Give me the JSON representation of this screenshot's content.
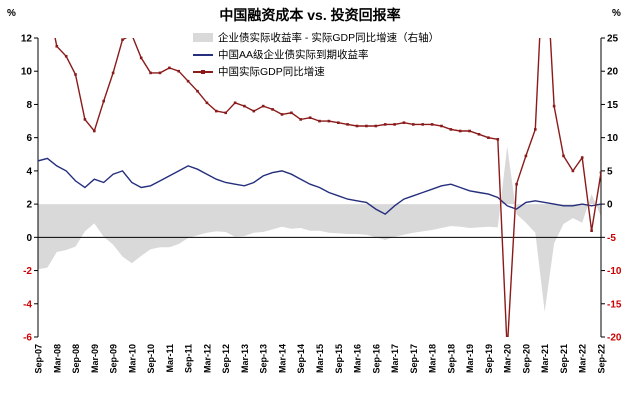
{
  "chart_data": {
    "type": "line",
    "title": "中国融资成本 vs. 投资回报率",
    "x_tick_labels": [
      "Sep-07",
      "Mar-08",
      "Sep-08",
      "Mar-09",
      "Sep-09",
      "Mar-10",
      "Sep-10",
      "Mar-11",
      "Sep-11",
      "Mar-12",
      "Sep-12",
      "Mar-13",
      "Sep-13",
      "Mar-14",
      "Sep-14",
      "Mar-15",
      "Sep-15",
      "Mar-16",
      "Sep-16",
      "Mar-17",
      "Sep-17",
      "Mar-18",
      "Sep-18",
      "Mar-19",
      "Sep-19",
      "Mar-20",
      "Sep-20",
      "Mar-21",
      "Sep-21",
      "Mar-22",
      "Sep-22"
    ],
    "left_axis": {
      "label": "%",
      "min": -6,
      "max": 12,
      "ticks": [
        12,
        10,
        8,
        6,
        4,
        2,
        0,
        -2,
        -4,
        -6
      ]
    },
    "right_axis": {
      "label": "%",
      "min": -20,
      "max": 25,
      "ticks": [
        25,
        20,
        15,
        10,
        5,
        0,
        -5,
        -10,
        -15,
        -20
      ]
    },
    "negative_tick_color": "#cc0000",
    "axis_color": "#000000",
    "legend_position": "top-center-inside",
    "grid": false,
    "series": [
      {
        "name": "企业债实际收益率 - 实际GDP同比增速（右轴）",
        "type": "area",
        "axis": "right",
        "color": "#d9d9d9",
        "derived": "series1_minus_series2",
        "baseline": 0
      },
      {
        "name": "中国AA级企业债实际到期收益率",
        "type": "line",
        "axis": "left",
        "color": "#252f7d",
        "values": [
          4.6,
          4.75,
          4.3,
          4.0,
          3.4,
          3.0,
          3.5,
          3.3,
          3.8,
          4.0,
          3.3,
          3.0,
          3.1,
          3.4,
          3.7,
          4.0,
          4.3,
          4.1,
          3.8,
          3.5,
          3.3,
          3.2,
          3.1,
          3.3,
          3.7,
          3.9,
          4.0,
          3.8,
          3.5,
          3.2,
          3.0,
          2.7,
          2.5,
          2.3,
          2.2,
          2.1,
          1.7,
          1.4,
          1.9,
          2.3,
          2.5,
          2.7,
          2.9,
          3.1,
          3.2,
          3.0,
          2.8,
          2.7,
          2.6,
          2.4,
          1.9,
          1.7,
          2.1,
          2.2,
          2.1,
          2.0,
          1.9,
          1.9,
          2.0,
          1.9,
          2.0
        ]
      },
      {
        "name": "中国实际GDP同比增速",
        "type": "line",
        "axis": "left",
        "color": "#8b1a1a",
        "markers": true,
        "values": [
          14.4,
          14.3,
          11.5,
          10.9,
          9.8,
          7.1,
          6.4,
          8.2,
          9.9,
          11.9,
          12.2,
          10.8,
          9.9,
          9.9,
          10.2,
          10.0,
          9.4,
          8.8,
          8.1,
          7.6,
          7.5,
          8.1,
          7.9,
          7.6,
          7.9,
          7.7,
          7.4,
          7.5,
          7.1,
          7.2,
          7.0,
          7.0,
          6.9,
          6.8,
          6.7,
          6.7,
          6.7,
          6.8,
          6.8,
          6.9,
          6.8,
          6.8,
          6.8,
          6.7,
          6.5,
          6.4,
          6.4,
          6.2,
          6.0,
          5.9,
          -6.8,
          3.2,
          4.9,
          6.5,
          18.3,
          7.9,
          4.9,
          4.0,
          4.8,
          0.4,
          3.9
        ]
      }
    ]
  }
}
